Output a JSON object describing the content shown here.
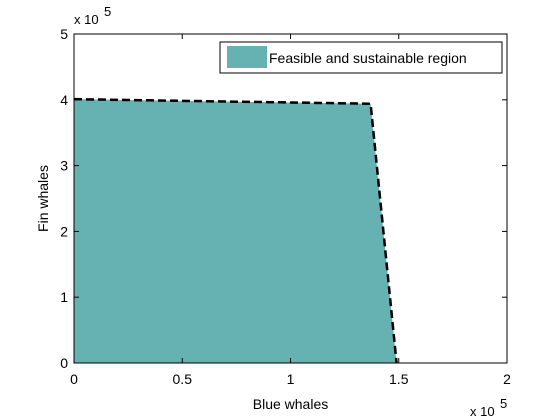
{
  "chart_data": {
    "type": "area",
    "title": "",
    "xlabel": "Blue whales",
    "ylabel": "Fin whales",
    "xlim": [
      0,
      2
    ],
    "ylim": [
      0,
      5
    ],
    "x_multiplier": "x 10",
    "x_multiplier_exp": "5",
    "y_multiplier": "x 10",
    "y_multiplier_exp": "5",
    "x_ticks": [
      0,
      0.5,
      1,
      1.5,
      2
    ],
    "x_tick_labels": [
      "0",
      "0.5",
      "1",
      "1.5",
      "2"
    ],
    "y_ticks": [
      0,
      1,
      2,
      3,
      4,
      5
    ],
    "y_tick_labels": [
      "0",
      "1",
      "2",
      "3",
      "4",
      "5"
    ],
    "grid": false,
    "legend_placement": "top-right",
    "series": [
      {
        "name": "Feasible and sustainable region",
        "color": "#66b2b2",
        "boundary_style": "dashed",
        "boundary_color": "#000000",
        "points": [
          {
            "x": 0,
            "y": 4.01
          },
          {
            "x": 1.37,
            "y": 3.94
          },
          {
            "x": 1.49,
            "y": 0
          }
        ]
      }
    ]
  }
}
